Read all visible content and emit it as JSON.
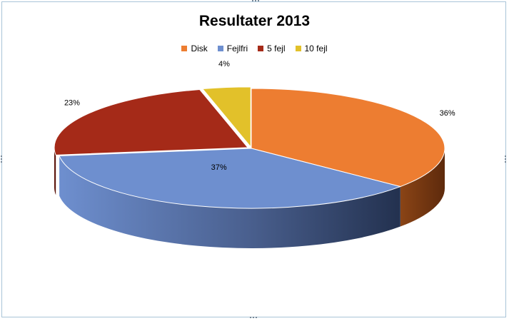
{
  "chart_data": {
    "type": "pie",
    "title": "Resultater 2013",
    "legend_position": "top",
    "slices": [
      {
        "name": "Disk",
        "value": 36,
        "label": "36%",
        "color": "#ED7D31",
        "side_color": "#7A3A10"
      },
      {
        "name": "Fejlfri",
        "value": 37,
        "label": "37%",
        "color": "#6E8FCF",
        "side_color": "#2F3F62"
      },
      {
        "name": "5 fejl",
        "value": 23,
        "label": "23%",
        "color": "#A52A18",
        "side_color": "#5A130A"
      },
      {
        "name": "10 fejl",
        "value": 4,
        "label": "4%",
        "color": "#E2C12A",
        "side_color": "#6A5A10"
      }
    ]
  }
}
